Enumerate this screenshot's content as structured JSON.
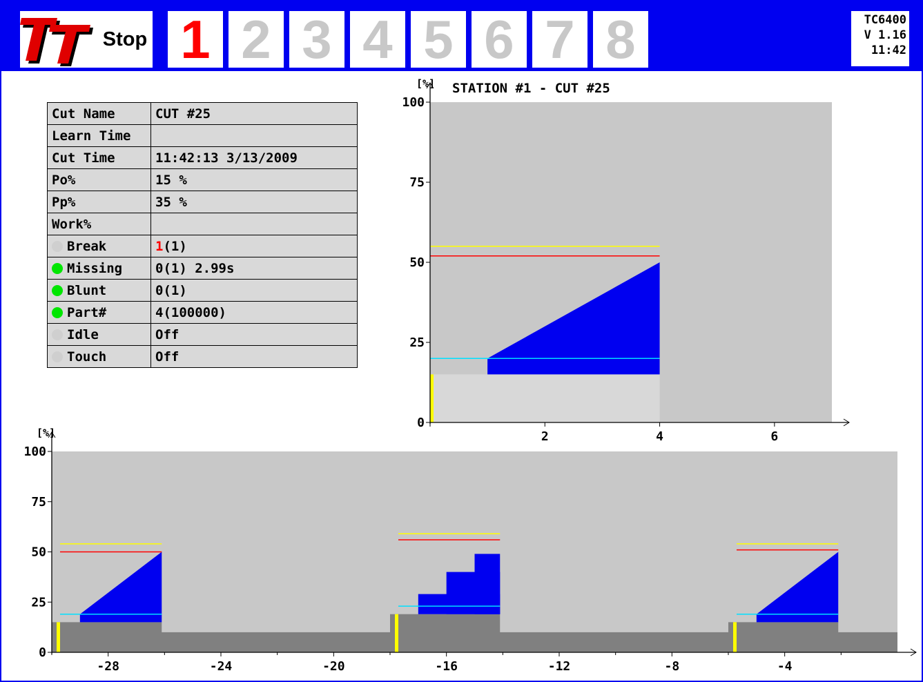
{
  "header": {
    "stop_label": "Stop",
    "stations": [
      {
        "label": "1",
        "active": true
      },
      {
        "label": "2",
        "active": false
      },
      {
        "label": "3",
        "active": false
      },
      {
        "label": "4",
        "active": false
      },
      {
        "label": "5",
        "active": false
      },
      {
        "label": "6",
        "active": false
      },
      {
        "label": "7",
        "active": false
      },
      {
        "label": "8",
        "active": false
      }
    ],
    "model": "TC6400",
    "version": "V 1.16",
    "time": "11:42"
  },
  "info_table": {
    "rows": [
      {
        "label": "Cut Name",
        "value": "CUT #25"
      },
      {
        "label": "Learn Time",
        "value": ""
      },
      {
        "label": "Cut Time",
        "value": "11:42:13 3/13/2009"
      },
      {
        "label": "Po%",
        "value": "15 %"
      },
      {
        "label": "Pp%",
        "value": "35 %"
      },
      {
        "label": "Work%",
        "value": ""
      }
    ],
    "monitors": [
      {
        "label": "Break",
        "count": "1",
        "value": "(1)",
        "status": "off",
        "count_color": "#ff0000"
      },
      {
        "label": "Missing",
        "count": "0",
        "value": "(1)  2.99s",
        "status": "on"
      },
      {
        "label": "Blunt",
        "count": "0",
        "value": "(1)",
        "status": "on"
      },
      {
        "label": "Part#",
        "count": "4",
        "value": "(100000)",
        "status": "on"
      },
      {
        "label": "Idle",
        "count": "Off",
        "value": "",
        "status": "off"
      },
      {
        "label": "Touch",
        "count": "Off",
        "value": "",
        "status": "off"
      }
    ]
  },
  "chart_data": [
    {
      "type": "area",
      "title": "STATION #1 - CUT #25",
      "ylabel": "[%]",
      "ylim": [
        0,
        100
      ],
      "xlim": [
        0,
        7
      ],
      "y_ticks": [
        0,
        25,
        50,
        75,
        100
      ],
      "x_ticks": [
        2,
        4,
        6
      ],
      "base_level": 15,
      "cut_window": [
        0,
        4
      ],
      "series": [
        {
          "points": [
            [
              1,
              20
            ],
            [
              4,
              50
            ]
          ],
          "floor": 15,
          "color": "#0000f0"
        }
      ],
      "limits": [
        {
          "color": "#ffff00",
          "y": 55,
          "x": [
            0,
            4
          ]
        },
        {
          "color": "#ff0000",
          "y": 52,
          "x": [
            0,
            4
          ]
        },
        {
          "color": "#00e0ff",
          "y": 20,
          "x": [
            0,
            4
          ]
        }
      ],
      "markers": [
        {
          "color": "#ffff00",
          "x": 0,
          "y": [
            0,
            15
          ]
        }
      ]
    },
    {
      "type": "area",
      "ylabel": "[%]",
      "ylim": [
        0,
        100
      ],
      "xlim": [
        -30,
        0
      ],
      "y_ticks": [
        0,
        25,
        50,
        75,
        100
      ],
      "x_ticks": [
        -28,
        -24,
        -20,
        -16,
        -12,
        -8,
        -4
      ],
      "idle_level": 10,
      "cuts": [
        {
          "x0": -30,
          "x1": -26.1,
          "base": 15,
          "shape": "ramp",
          "ramp_start": -29,
          "low": 19,
          "high": 50,
          "limits": {
            "yellow": 54,
            "red": 50,
            "cyan": 19
          }
        },
        {
          "x0": -18,
          "x1": -14.1,
          "base": 19,
          "shape": "steps",
          "steps": [
            [
              -17,
              29
            ],
            [
              -16,
              40
            ],
            [
              -15,
              49
            ]
          ],
          "low": 23,
          "limits": {
            "yellow": 59,
            "red": 56,
            "cyan": 23
          }
        },
        {
          "x0": -6,
          "x1": -2.1,
          "base": 15,
          "shape": "ramp",
          "ramp_start": -5,
          "low": 19,
          "high": 50,
          "limits": {
            "yellow": 54,
            "red": 51,
            "cyan": 19
          }
        }
      ]
    }
  ]
}
